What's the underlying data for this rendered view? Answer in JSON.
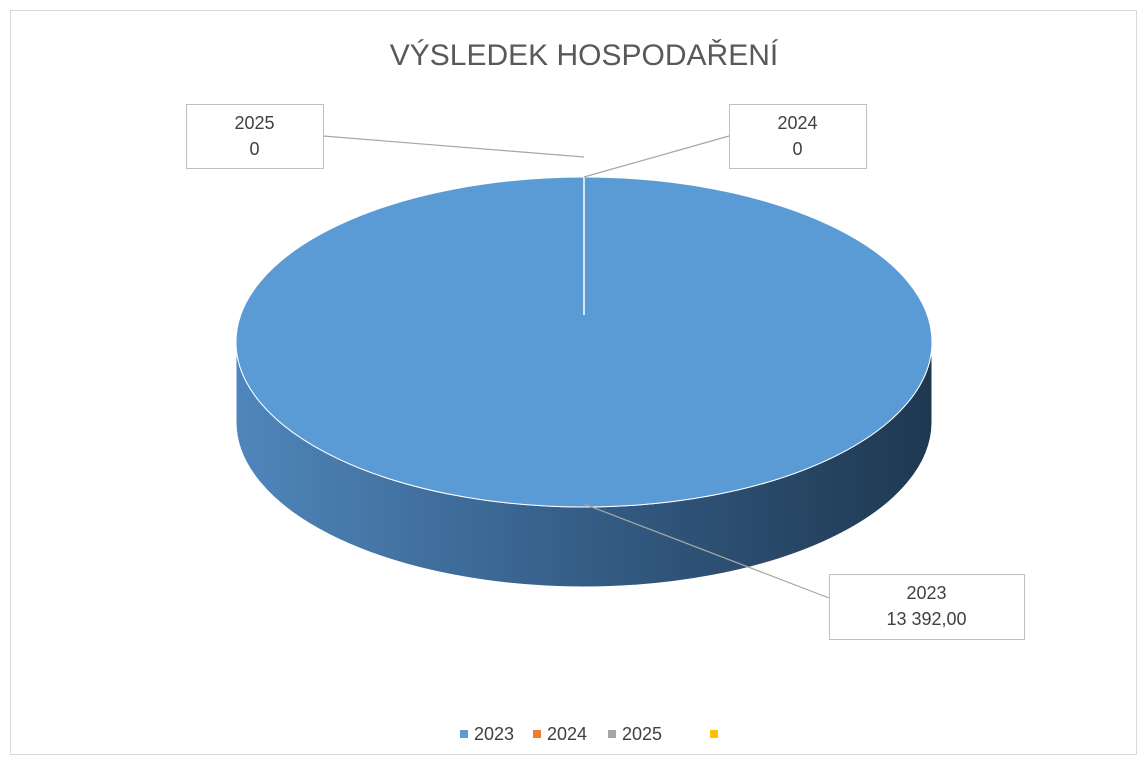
{
  "chart_data": {
    "type": "pie3d",
    "title": "VÝSLEDEK HOSPODAŘENÍ",
    "categories": [
      "2023",
      "2024",
      "2025",
      null
    ],
    "values": [
      13392,
      0,
      0,
      null
    ],
    "value_labels": [
      "13 392,00",
      "0",
      "0",
      null
    ],
    "colors": [
      "#5b9bd5",
      "#ed7d31",
      "#a5a5a5",
      "#ffc000"
    ],
    "legend": "bottom"
  }
}
